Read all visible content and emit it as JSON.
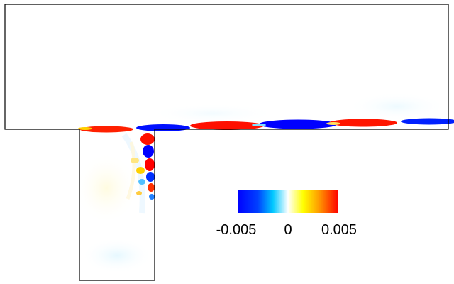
{
  "colorbar": {
    "colors": [
      "#0000ff",
      "#00bfff",
      "#ffffff",
      "#ffff00",
      "#ff0000"
    ],
    "ticks": [
      "-0.005",
      "0",
      "0.005"
    ]
  },
  "field": {
    "background": "#ffffff",
    "positive_color": "#ff0000",
    "negative_color": "#0000ff",
    "outline_color": "#000000"
  }
}
